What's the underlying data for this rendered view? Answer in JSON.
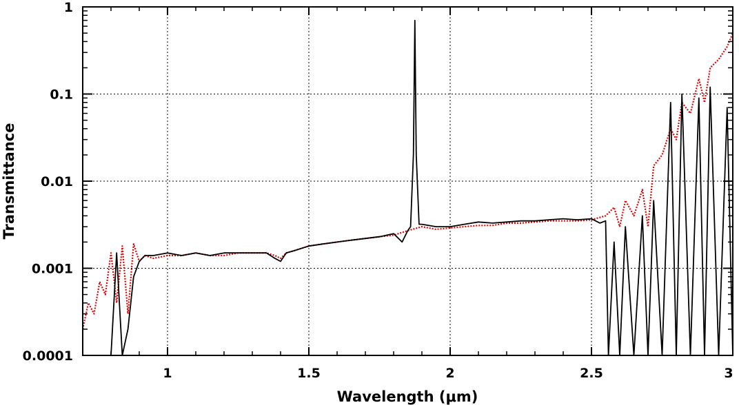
{
  "chart_data": {
    "type": "line",
    "xlabel": "Wavelength (μm)",
    "ylabel": "Transmittance",
    "xlim": [
      0.7,
      3.0
    ],
    "ylim": [
      0.0001,
      1
    ],
    "yscale": "log",
    "grid": true,
    "x_ticks": [
      {
        "value": 1,
        "label": "1"
      },
      {
        "value": 1.5,
        "label": "1.5"
      },
      {
        "value": 2,
        "label": "2"
      },
      {
        "value": 2.5,
        "label": "2.5"
      },
      {
        "value": 3,
        "label": "3"
      }
    ],
    "y_ticks": [
      {
        "value": 0.0001,
        "label": "0.0001"
      },
      {
        "value": 0.001,
        "label": "0.001"
      },
      {
        "value": 0.01,
        "label": "0.01"
      },
      {
        "value": 0.1,
        "label": "0.1"
      },
      {
        "value": 1,
        "label": "1"
      }
    ],
    "series": [
      {
        "style": "solid",
        "color": "#000000",
        "x": [
          0.8,
          0.82,
          0.84,
          0.86,
          0.88,
          0.9,
          0.92,
          0.95,
          1.0,
          1.05,
          1.1,
          1.15,
          1.2,
          1.25,
          1.3,
          1.35,
          1.38,
          1.4,
          1.42,
          1.45,
          1.5,
          1.55,
          1.6,
          1.65,
          1.7,
          1.75,
          1.8,
          1.83,
          1.85,
          1.86,
          1.87,
          1.875,
          1.88,
          1.89,
          1.9,
          1.95,
          2.0,
          2.05,
          2.1,
          2.15,
          2.2,
          2.25,
          2.3,
          2.35,
          2.4,
          2.45,
          2.5,
          2.53,
          2.55,
          2.56,
          2.58,
          2.6,
          2.62,
          2.65,
          2.68,
          2.7,
          2.72,
          2.75,
          2.78,
          2.8,
          2.82,
          2.85,
          2.88,
          2.9,
          2.92,
          2.95,
          2.98,
          3.0
        ],
        "y": [
          0.0001,
          0.0015,
          0.0001,
          0.0002,
          0.0008,
          0.0012,
          0.0014,
          0.0014,
          0.0015,
          0.0014,
          0.0015,
          0.0014,
          0.0015,
          0.0015,
          0.0015,
          0.0015,
          0.0013,
          0.0012,
          0.0015,
          0.0016,
          0.0018,
          0.0019,
          0.002,
          0.0021,
          0.0022,
          0.0023,
          0.0025,
          0.002,
          0.0027,
          0.003,
          0.02,
          0.7,
          0.02,
          0.0032,
          0.0032,
          0.003,
          0.003,
          0.0032,
          0.0034,
          0.0033,
          0.0034,
          0.0035,
          0.0035,
          0.0036,
          0.0037,
          0.0036,
          0.0037,
          0.0033,
          0.0035,
          0.0001,
          0.002,
          0.0001,
          0.003,
          0.0001,
          0.004,
          0.0001,
          0.006,
          0.0001,
          0.08,
          0.0001,
          0.1,
          0.0001,
          0.09,
          0.0001,
          0.12,
          0.0001,
          0.07,
          0.0001
        ]
      },
      {
        "style": "dotted",
        "color": "#e00000",
        "x": [
          0.7,
          0.72,
          0.74,
          0.76,
          0.78,
          0.8,
          0.82,
          0.84,
          0.86,
          0.88,
          0.9,
          0.92,
          0.95,
          1.0,
          1.05,
          1.1,
          1.15,
          1.2,
          1.25,
          1.3,
          1.35,
          1.38,
          1.4,
          1.42,
          1.45,
          1.5,
          1.55,
          1.6,
          1.65,
          1.7,
          1.75,
          1.8,
          1.85,
          1.9,
          1.95,
          2.0,
          2.05,
          2.1,
          2.15,
          2.2,
          2.25,
          2.3,
          2.35,
          2.4,
          2.45,
          2.5,
          2.55,
          2.58,
          2.6,
          2.62,
          2.65,
          2.68,
          2.7,
          2.72,
          2.75,
          2.78,
          2.8,
          2.82,
          2.85,
          2.88,
          2.9,
          2.92,
          2.95,
          2.98,
          3.0
        ],
        "y": [
          0.0002,
          0.0004,
          0.0003,
          0.0007,
          0.0005,
          0.0015,
          0.0004,
          0.0018,
          0.0003,
          0.0019,
          0.0012,
          0.0014,
          0.0013,
          0.0014,
          0.0014,
          0.0015,
          0.0014,
          0.0014,
          0.0015,
          0.0015,
          0.0015,
          0.0014,
          0.0013,
          0.0015,
          0.0016,
          0.0018,
          0.0019,
          0.002,
          0.0021,
          0.0022,
          0.0023,
          0.0024,
          0.0027,
          0.003,
          0.0028,
          0.0029,
          0.003,
          0.0031,
          0.0031,
          0.0033,
          0.0033,
          0.0034,
          0.0035,
          0.0035,
          0.0035,
          0.0036,
          0.004,
          0.005,
          0.003,
          0.006,
          0.004,
          0.008,
          0.003,
          0.015,
          0.02,
          0.04,
          0.03,
          0.08,
          0.06,
          0.15,
          0.08,
          0.2,
          0.25,
          0.35,
          0.5
        ]
      }
    ]
  }
}
